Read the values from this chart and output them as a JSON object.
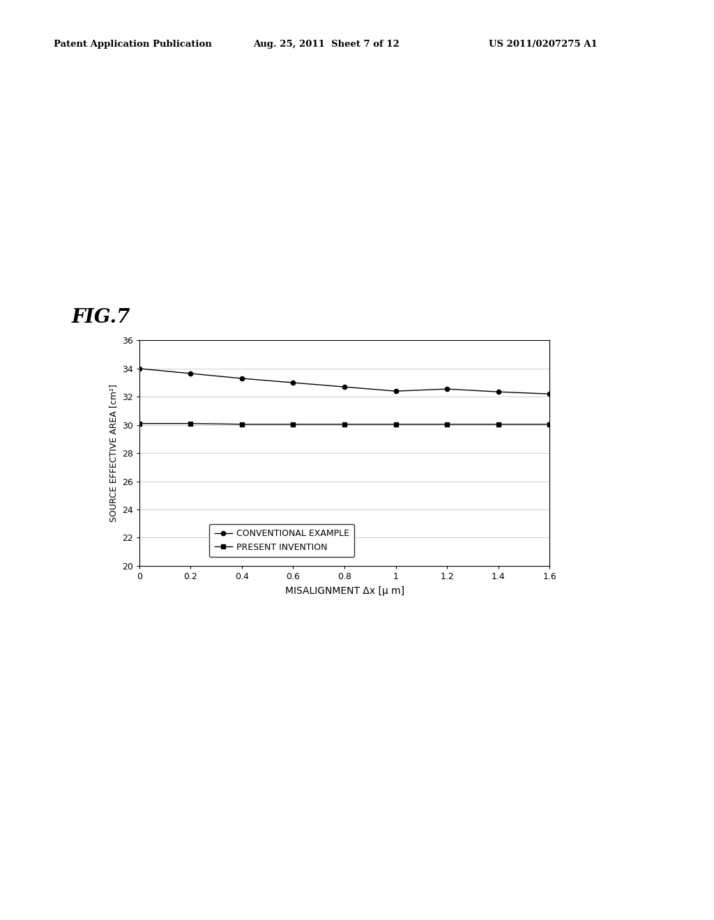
{
  "header_left": "Patent Application Publication",
  "header_center": "Aug. 25, 2011  Sheet 7 of 12",
  "header_right": "US 2011/0207275 A1",
  "fig_label": "FIG.7",
  "xlabel": "MISALIGNMENT Δx [μ m]",
  "ylabel": "SOURCE EFFECTIVE AREA [cm²]",
  "xlim": [
    0,
    1.6
  ],
  "ylim": [
    20,
    36
  ],
  "xticks": [
    0,
    0.2,
    0.4,
    0.6,
    0.8,
    1.0,
    1.2,
    1.4,
    1.6
  ],
  "xtick_labels": [
    "0",
    "0.2",
    "0.4",
    "0.6",
    "0.8",
    "1",
    "1.2",
    "1.4",
    "1.6"
  ],
  "yticks": [
    20,
    22,
    24,
    26,
    28,
    30,
    32,
    34,
    36
  ],
  "conv_x": [
    0,
    0.2,
    0.4,
    0.6,
    0.8,
    1.0,
    1.2,
    1.4,
    1.6
  ],
  "conv_y": [
    34.0,
    33.65,
    33.3,
    33.0,
    32.7,
    32.4,
    32.55,
    32.35,
    32.2
  ],
  "present_x": [
    0,
    0.2,
    0.4,
    0.6,
    0.8,
    1.0,
    1.2,
    1.4,
    1.6
  ],
  "present_y": [
    30.1,
    30.1,
    30.05,
    30.05,
    30.05,
    30.05,
    30.05,
    30.05,
    30.05
  ],
  "legend_conv": "CONVENTIONAL EXAMPLE",
  "legend_present": "PRESENT INVENTION",
  "line_color": "#000000",
  "bg_color": "#ffffff",
  "grid_color": "#bbbbbb"
}
